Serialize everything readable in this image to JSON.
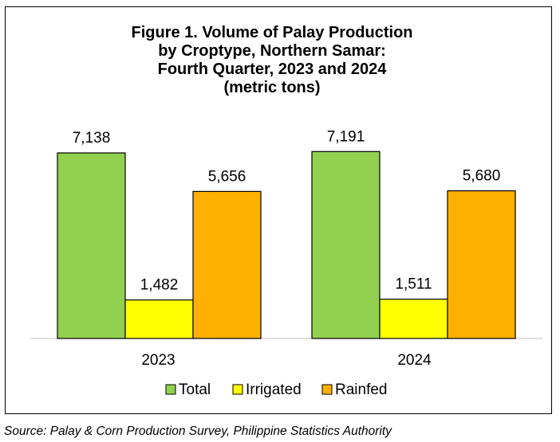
{
  "chart_data": {
    "type": "bar",
    "title_lines": [
      "Figure 1. Volume of Palay Production",
      "by Croptype, Northern Samar:",
      "Fourth Quarter, 2023 and 2024",
      "(metric tons)"
    ],
    "categories": [
      "2023",
      "2024"
    ],
    "series": [
      {
        "name": "Total",
        "color": "#92d050",
        "values": [
          7138,
          7191
        ],
        "labels": [
          "7,138",
          "7,191"
        ]
      },
      {
        "name": "Irrigated",
        "color": "#ffff00",
        "values": [
          1482,
          1511
        ],
        "labels": [
          "1,482",
          "1,511"
        ]
      },
      {
        "name": "Rainfed",
        "color": "#ffb000",
        "values": [
          5656,
          5680
        ],
        "labels": [
          "5,656",
          "5,680"
        ]
      }
    ],
    "ylim": [
      0,
      8000
    ],
    "grid": false,
    "legend_position": "bottom"
  },
  "source": "Source: Palay & Corn Production Survey, Philippine Statistics Authority"
}
